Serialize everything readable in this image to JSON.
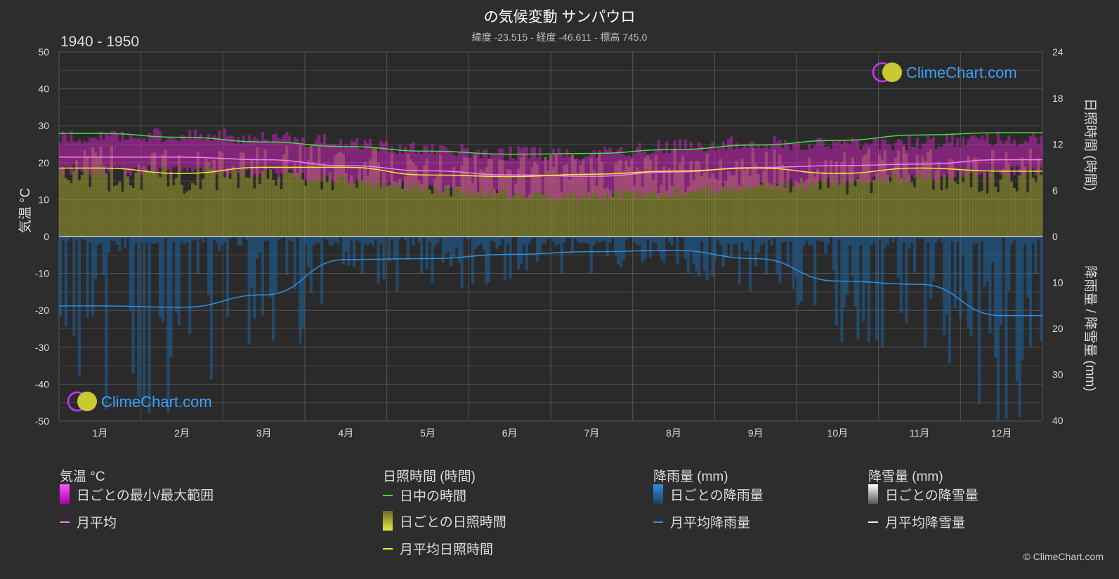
{
  "header": {
    "title": "の気候変動 サンパウロ",
    "subtitle": "緯度 -23.515 - 経度 -46.611 - 標高 745.0",
    "period": "1940 - 1950"
  },
  "watermark": {
    "text": "ClimeChart.com"
  },
  "copyright": "© ClimeChart.com",
  "colors": {
    "background": "#2d2d2d",
    "daylight": "#44dd44",
    "temp_mean": "#ff77ff",
    "temp_range": "#dd22cc",
    "sunshine_mean": "#eeee33",
    "sunshine_daily": "#9a9a2e",
    "rain_mean": "#2f8fe0",
    "rain_daily": "#1e5f96",
    "snow_mean": "#eeeeee",
    "watermark": "#3aa0ff"
  },
  "legend": {
    "temperature": {
      "title": "気温 °C",
      "range_label": "日ごとの最小/最大範囲",
      "mean_label": "月平均"
    },
    "sunshine": {
      "title": "日照時間 (時間)",
      "daylight_label": "日中の時間",
      "daily_label": "日ごとの日照時間",
      "mean_label": "月平均日照時間"
    },
    "rain": {
      "title": "降雨量 (mm)",
      "daily_label": "日ごとの降雨量",
      "mean_label": "月平均降雨量"
    },
    "snow": {
      "title": "降雪量 (mm)",
      "daily_label": "日ごとの降雪量",
      "mean_label": "月平均降雪量"
    }
  },
  "chart_data": {
    "type": "line",
    "title": "の気候変動 サンパウロ",
    "categories": [
      "1月",
      "2月",
      "3月",
      "4月",
      "5月",
      "6月",
      "7月",
      "8月",
      "9月",
      "10月",
      "11月",
      "12月"
    ],
    "axes": {
      "left": {
        "label": "気温 °C",
        "ticks": [
          50,
          40,
          30,
          20,
          10,
          0,
          -10,
          -20,
          -30,
          -40,
          -50
        ],
        "range": [
          -50,
          50
        ]
      },
      "right_top": {
        "label": "日照時間 (時間)",
        "ticks": [
          24,
          18,
          12,
          6,
          0
        ],
        "range": [
          0,
          24
        ]
      },
      "right_bottom": {
        "label": "降雨量 / 降雪量 (mm)",
        "ticks": [
          0,
          10,
          20,
          30,
          40
        ],
        "range": [
          0,
          40
        ]
      }
    },
    "series": [
      {
        "name": "日中の時間",
        "unit": "hours",
        "values": [
          13.4,
          12.9,
          12.3,
          11.7,
          11.1,
          10.7,
          10.8,
          11.3,
          11.9,
          12.5,
          13.2,
          13.5
        ]
      },
      {
        "name": "月平均",
        "unit": "°C",
        "values": [
          21.5,
          21.5,
          20.8,
          19.2,
          17.8,
          16.7,
          16.3,
          17.5,
          18.7,
          19.2,
          19.6,
          20.8
        ]
      },
      {
        "name": "日ごとの最小/最大範囲",
        "unit": "°C",
        "min": [
          18.0,
          18.0,
          17.5,
          15.5,
          13.0,
          11.5,
          11.0,
          12.0,
          13.5,
          15.0,
          16.0,
          17.5
        ],
        "max": [
          27.0,
          27.5,
          27.0,
          25.5,
          23.5,
          22.5,
          22.5,
          24.5,
          25.5,
          25.0,
          25.5,
          26.5
        ]
      },
      {
        "name": "月平均日照時間",
        "unit": "hours",
        "values": [
          8.9,
          8.2,
          9.0,
          9.0,
          8.0,
          7.8,
          8.1,
          8.5,
          8.9,
          8.2,
          8.9,
          8.5
        ]
      },
      {
        "name": "月平均降雨量",
        "unit": "mm",
        "values": [
          15.1,
          15.4,
          12.7,
          5.0,
          4.8,
          3.9,
          3.3,
          3.0,
          4.8,
          9.7,
          10.4,
          17.2
        ]
      },
      {
        "name": "月平均降雪量",
        "unit": "mm",
        "values": [
          0,
          0,
          0,
          0,
          0,
          0,
          0,
          0,
          0,
          0,
          0,
          0
        ]
      }
    ],
    "grid": true
  }
}
